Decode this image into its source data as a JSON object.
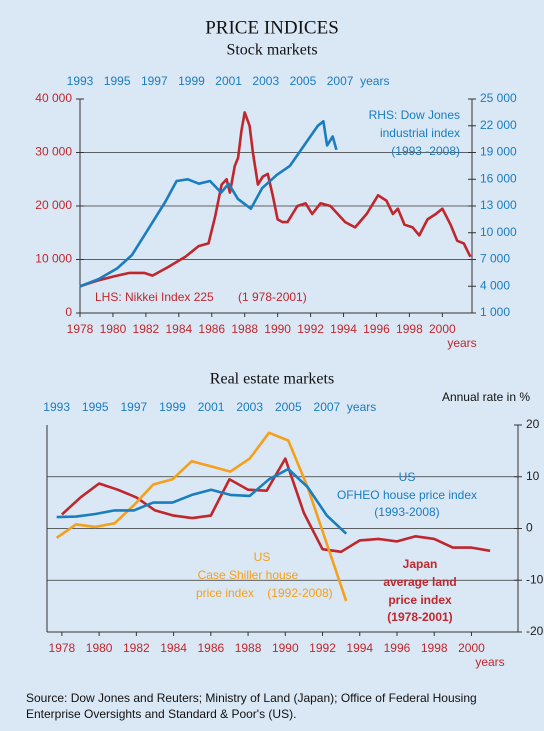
{
  "title": "PRICE INDICES",
  "source": [
    "Source: Dow Jones and Reuters; Ministry of Land (Japan); Office of Federal Housing",
    "Enterprise Oversights and Standard & Poor's (US)."
  ],
  "chart_data": [
    {
      "type": "line",
      "title": "Stock markets",
      "grid": true,
      "xlim": [
        1978,
        2001.8
      ],
      "xticks": [
        1978,
        1980,
        1982,
        1984,
        1986,
        1988,
        1990,
        1992,
        1994,
        1996,
        1998,
        2000
      ],
      "x_label": "years",
      "x_color": "#c0272d",
      "x2lim": [
        1993,
        2014.1
      ],
      "x2ticks": [
        1993,
        1995,
        1997,
        1999,
        2001,
        2003,
        2005,
        2007
      ],
      "x2_label": "years",
      "x2_color": "#1a7dc0",
      "ylim": [
        0,
        40000
      ],
      "yticks": [
        0,
        {
          "value": 10000,
          "label": "10 000"
        },
        {
          "value": 20000,
          "label": "20 000"
        },
        {
          "value": 30000,
          "label": "30 000"
        },
        {
          "value": 40000,
          "label": "40 000"
        }
      ],
      "y_color": "#c0272d",
      "y2lim": [
        1000,
        25000
      ],
      "y2ticks": [
        {
          "value": 1000,
          "label": "1 000"
        },
        {
          "value": 4000,
          "label": "4 000"
        },
        {
          "value": 7000,
          "label": "7 000"
        },
        {
          "value": 10000,
          "label": "10 000"
        },
        {
          "value": 13000,
          "label": "13 000"
        },
        {
          "value": 16000,
          "label": "16 000"
        },
        {
          "value": 19000,
          "label": "19 000"
        },
        {
          "value": 22000,
          "label": "22 000"
        },
        {
          "value": 25000,
          "label": "25 000"
        }
      ],
      "y2_color": "#1a7dc0",
      "series": [
        {
          "label": [
            "LHS: Nikkei Index 225",
            "(1 978-2001)"
          ],
          "color": "#c0272d",
          "x": [
            1978,
            1979,
            1980,
            1981,
            1981.9,
            1982.4,
            1983.3,
            1984.4,
            1985.2,
            1985.8,
            1986.2,
            1986.6,
            1986.9,
            1987.1,
            1987.4,
            1987.6,
            1987.8,
            1988,
            1988.3,
            1988.5,
            1988.8,
            1989.1,
            1989.4,
            1989.7,
            1990,
            1990.3,
            1990.6,
            1991.2,
            1991.7,
            1992.1,
            1992.6,
            1993.2,
            1994.1,
            1994.7,
            1995.4,
            1996.1,
            1996.6,
            1997,
            1997.3,
            1997.7,
            1998.2,
            1998.6,
            1999.1,
            1999.6,
            2000,
            2000.5,
            2000.9,
            2001.3,
            2001.7
          ],
          "values": [
            5000,
            6000,
            6800,
            7500,
            7500,
            7000,
            8500,
            10500,
            12500,
            13000,
            18000,
            24000,
            25000,
            22500,
            27500,
            29000,
            34000,
            37500,
            35000,
            30000,
            24000,
            25500,
            26000,
            22000,
            17500,
            17000,
            17000,
            20000,
            20500,
            18500,
            20500,
            20000,
            17000,
            16000,
            18500,
            22000,
            21000,
            18500,
            19500,
            16500,
            16000,
            14500,
            17500,
            18500,
            19500,
            16500,
            13500,
            13000,
            10500
          ]
        },
        {
          "label": [
            "RHS: Dow Jones",
            "industrial index",
            "(1993 -2008)"
          ],
          "color": "#1a7dc0",
          "axis": "y2",
          "x_axis": "x2",
          "x": [
            1993,
            1994,
            1995,
            1995.8,
            1996.4,
            1997,
            1997.6,
            1998.2,
            1998.8,
            1999.4,
            2000,
            2000.6,
            2001,
            2001.5,
            2002.2,
            2002.8,
            2003.6,
            2004.3,
            2004.8,
            2005.3,
            2005.8,
            2006.1,
            2006.3,
            2006.6,
            2006.8
          ],
          "values": [
            4000,
            4800,
            6000,
            7500,
            9500,
            11500,
            13500,
            15800,
            16000,
            15500,
            15800,
            14500,
            15500,
            13800,
            12700,
            15000,
            16500,
            17500,
            19000,
            20500,
            22000,
            22500,
            19800,
            20800,
            19300
          ]
        }
      ]
    },
    {
      "type": "line",
      "title": "Real estate markets",
      "y_label": "Annual rate in %",
      "grid": true,
      "y_side": "right",
      "xlim": [
        1977.2,
        2002.5
      ],
      "xticks": [
        1978,
        1980,
        1982,
        1984,
        1986,
        1988,
        1990,
        1992,
        1994,
        1996,
        1998,
        2000
      ],
      "x_label": "years",
      "x_color": "#c0272d",
      "x2lim": [
        1992.5,
        2016.9
      ],
      "x2ticks": [
        1993,
        1995,
        1997,
        1999,
        2001,
        2003,
        2005,
        2007
      ],
      "x2_label": "years",
      "x2_color": "#1a7dc0",
      "ylim": [
        -20,
        20
      ],
      "yticks": [
        -20,
        -10,
        0,
        10,
        20
      ],
      "y_color": "#222222",
      "series": [
        {
          "label": [
            "Japan",
            "average land",
            "price index",
            "(1978-2001)"
          ],
          "color": "#c0272d",
          "x": [
            1978,
            1979,
            1980,
            1981,
            1982,
            1983,
            1984,
            1985,
            1986,
            1987,
            1988,
            1989,
            1990,
            1991,
            1992,
            1993,
            1994,
            1995,
            1996,
            1997,
            1998,
            1999,
            2000,
            2001
          ],
          "values": [
            2.7,
            6,
            8.7,
            7.5,
            6,
            3.5,
            2.5,
            2,
            2.5,
            9.5,
            7.5,
            7.3,
            13.5,
            3,
            -4,
            -4.5,
            -2.3,
            -2,
            -2.5,
            -1.5,
            -2,
            -3.7,
            -3.7,
            -4.3
          ]
        },
        {
          "label": [
            "US",
            "Case Shiller house",
            "price index",
            "(1992-2008)"
          ],
          "color": "#f5a01a",
          "x_axis": "x2",
          "x": [
            1993,
            1994,
            1995,
            1996,
            1997,
            1998,
            1999,
            2000,
            2001,
            2002,
            2003,
            2004,
            2005,
            2006,
            2007,
            2008
          ],
          "values": [
            -1.8,
            0.8,
            0.3,
            1,
            4.5,
            8.5,
            9.5,
            13,
            12,
            11,
            13.5,
            18.5,
            17,
            8,
            -3,
            -14
          ]
        },
        {
          "label": [
            "US",
            "OFHEO house price index",
            "(1993-2008)"
          ],
          "color": "#1a7dc0",
          "x_axis": "x2",
          "x": [
            1993,
            1994,
            1995,
            1996,
            1997,
            1998,
            1999,
            2000,
            2001,
            2002,
            2003,
            2004,
            2005,
            2006,
            2007,
            2008
          ],
          "values": [
            2.2,
            2.3,
            2.8,
            3.5,
            3.5,
            5,
            5,
            6.5,
            7.5,
            6.5,
            6.3,
            9.5,
            11.5,
            8,
            2.5,
            -1
          ]
        }
      ]
    }
  ]
}
